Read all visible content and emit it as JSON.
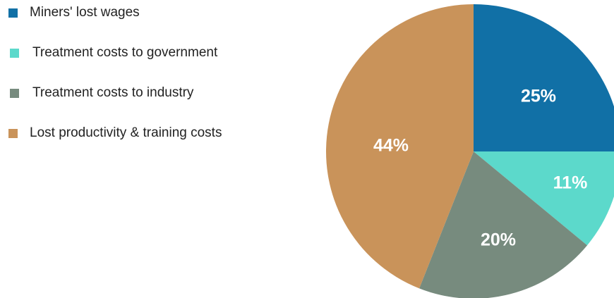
{
  "chart_data": {
    "type": "pie",
    "title": "",
    "legend_position": "top-left",
    "start_angle_deg": 0,
    "direction": "clockwise",
    "slices": [
      {
        "label": "Miners' lost wages",
        "value": 25,
        "value_label": "25%",
        "color": "#1170a6"
      },
      {
        "label": "Treatment costs to government",
        "value": 11,
        "value_label": "11%",
        "color": "#5cd9cb"
      },
      {
        "label": "Treatment costs to industry",
        "value": 20,
        "value_label": "20%",
        "color": "#778b7e"
      },
      {
        "label": "Lost productivity & training costs",
        "value": 44,
        "value_label": "44%",
        "color": "#c9935a"
      }
    ]
  }
}
